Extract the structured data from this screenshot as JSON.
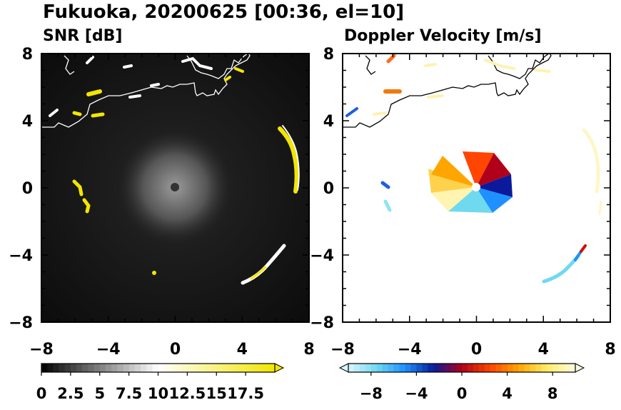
{
  "title": "Fukuoka, 20200625 [00:36, el=10]",
  "chart_data": [
    {
      "type": "heatmap",
      "title": "SNR [dB]",
      "x_ticks": [
        "−8",
        "−4",
        "0",
        "4",
        "8"
      ],
      "y_ticks": [
        "8",
        "4",
        "0",
        "−4",
        "−8"
      ],
      "xlim": [
        -8,
        8
      ],
      "ylim": [
        -8,
        8
      ],
      "background_color": "#111111",
      "colorbar": {
        "range": [
          0,
          20
        ],
        "ticks": [
          "0",
          "2.5",
          "5",
          "7.5",
          "10",
          "12.5",
          "15",
          "17.5"
        ],
        "extend": "max",
        "colors": [
          "#000000",
          "#ffffff",
          "#f2e600"
        ]
      }
    },
    {
      "type": "heatmap",
      "title": "Doppler Velocity [m/s]",
      "x_ticks": [
        "−8",
        "−4",
        "0",
        "4",
        "8"
      ],
      "y_ticks": [
        "8",
        "4",
        "0",
        "−4",
        "−8"
      ],
      "xlim": [
        -8,
        8
      ],
      "ylim": [
        -8,
        8
      ],
      "background_color": "#ffffff",
      "colorbar": {
        "range": [
          -10,
          10
        ],
        "ticks": [
          "−8",
          "−4",
          "0",
          "4",
          "8"
        ],
        "extend": "both",
        "colors": [
          "#d8f6fb",
          "#6fd9ef",
          "#1e90ff",
          "#0a1a9a",
          "#b0001a",
          "#ff4500",
          "#ffa500",
          "#ffee66",
          "#fffbe0"
        ]
      }
    }
  ]
}
